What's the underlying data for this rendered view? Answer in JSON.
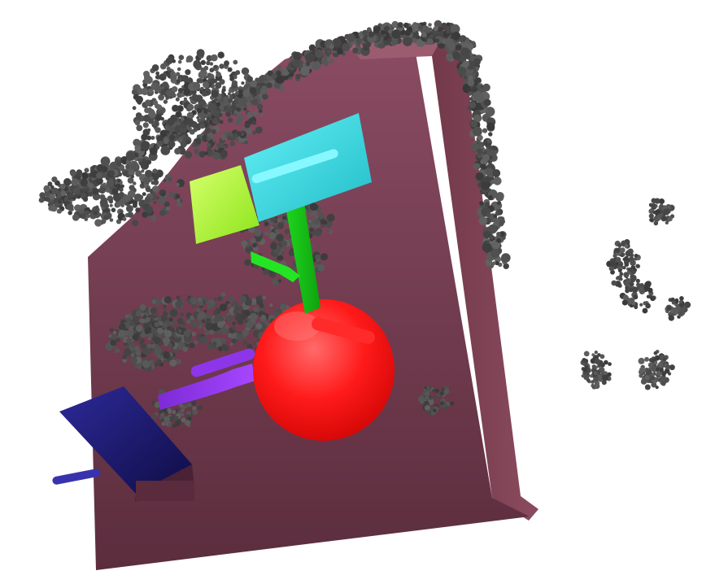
{
  "scene": {
    "background": "#ffffff",
    "panel_colors": {
      "front_top": "#8a4c63",
      "front_bottom": "#5b2d3d",
      "side": "#7a3b4f",
      "top": "#9c5c70",
      "edge_noise": "#4b4b4b"
    },
    "objects": [
      {
        "name": "cyan-block",
        "color": "#40d8e0"
      },
      {
        "name": "lime-block",
        "color": "#b8ff3a"
      },
      {
        "name": "green-connector",
        "color": "#1fd81f"
      },
      {
        "name": "red-sphere",
        "color": "#ff1a1a"
      },
      {
        "name": "purple-rod",
        "color": "#8a2be2"
      },
      {
        "name": "navy-tablet",
        "color": "#1c1a6b"
      },
      {
        "name": "point-cloud",
        "color": "#4a4a4a"
      }
    ]
  }
}
